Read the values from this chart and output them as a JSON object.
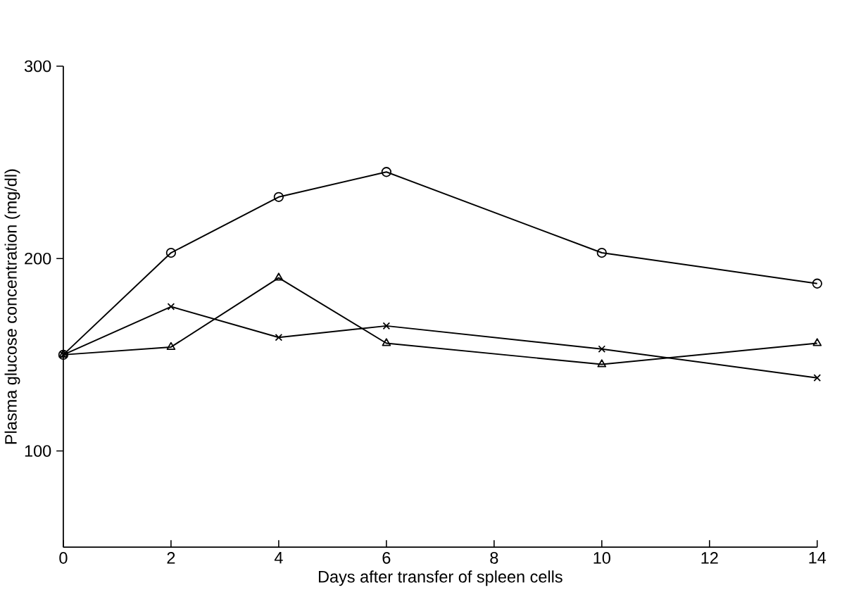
{
  "chart_data": {
    "type": "line",
    "xlabel": "Days after transfer of spleen cells",
    "ylabel": "Plasma glucose concentration (mg/dl)",
    "x": [
      0,
      2,
      4,
      6,
      10,
      14
    ],
    "series": [
      {
        "color": "#000000",
        "marker": "circle",
        "values": [
          150,
          203,
          232,
          245,
          203,
          187
        ]
      },
      {
        "color": "#000000",
        "marker": "cross",
        "values": [
          150,
          175,
          159,
          165,
          153,
          138
        ]
      },
      {
        "color": "#000000",
        "marker": "triangle",
        "values": [
          150,
          154,
          190,
          156,
          145,
          156
        ]
      }
    ],
    "xlim": [
      0,
      14
    ],
    "xticks": [
      0,
      2,
      4,
      6,
      8,
      10,
      12,
      14
    ],
    "ylim": [
      50,
      300
    ],
    "yticks": [
      100,
      200,
      300
    ],
    "line_style": "solid"
  }
}
